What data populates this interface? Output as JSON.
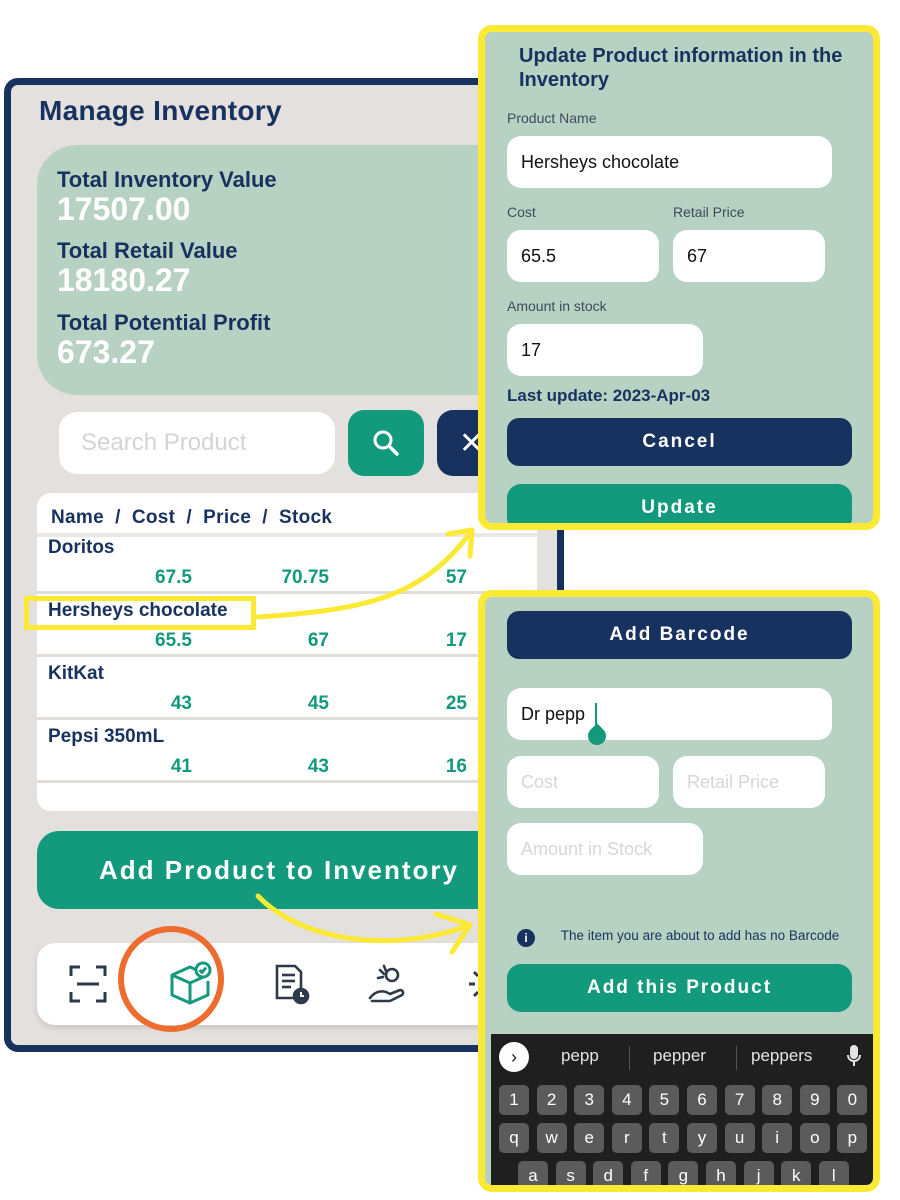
{
  "main": {
    "title": "Manage Inventory",
    "summary": [
      {
        "label": "Total Inventory Value",
        "value": "17507.00"
      },
      {
        "label": "Total Retail Value",
        "value": "18180.27"
      },
      {
        "label": "Total Potential Profit",
        "value": "673.27"
      }
    ],
    "search_placeholder": "Search Product",
    "search_icon": "search-icon",
    "clear_icon": "close-icon",
    "table_header": "Name  /  Cost  /  Price  /  Stock",
    "rows": [
      {
        "name": "Doritos",
        "cost": "67.5",
        "price": "70.75",
        "stock": "57"
      },
      {
        "name": "Hersheys chocolate",
        "cost": "65.5",
        "price": "67",
        "stock": "17"
      },
      {
        "name": "KitKat",
        "cost": "43",
        "price": "45",
        "stock": "25"
      },
      {
        "name": "Pepsi 350mL",
        "cost": "41",
        "price": "43",
        "stock": "16"
      }
    ],
    "add_button": "Add Product to Inventory",
    "nav_icons": [
      "scan-icon",
      "inventory-box-icon",
      "report-icon",
      "sell-icon",
      "settings-icon"
    ]
  },
  "update_panel": {
    "title": "Update Product information in the Inventory",
    "product_name_label": "Product Name",
    "product_name_value": "Hersheys chocolate",
    "cost_label": "Cost",
    "cost_value": "65.5",
    "retail_label": "Retail Price",
    "retail_value": "67",
    "stock_label": "Amount in stock",
    "stock_value": "17",
    "last_update": "Last update: 2023-Apr-03",
    "cancel_label": "Cancel",
    "update_label": "Update"
  },
  "add_panel": {
    "add_barcode_label": "Add Barcode",
    "name_value": "Dr pepp",
    "cost_placeholder": "Cost",
    "retail_placeholder": "Retail Price",
    "stock_placeholder": "Amount in Stock",
    "info_text": "The item you are about to add has no Barcode",
    "add_label": "Add this Product"
  },
  "keyboard": {
    "suggestions": [
      "pepp",
      "pepper",
      "peppers"
    ],
    "row_numbers": [
      "1",
      "2",
      "3",
      "4",
      "5",
      "6",
      "7",
      "8",
      "9",
      "0"
    ],
    "row_qwerty": [
      "q",
      "w",
      "e",
      "r",
      "t",
      "y",
      "u",
      "i",
      "o",
      "p"
    ],
    "row_asdf": [
      "a",
      "s",
      "d",
      "f",
      "g",
      "h",
      "j",
      "k",
      "l"
    ]
  },
  "colors": {
    "navy": "#17325e",
    "green": "#13997c",
    "mint": "#b7d2c2",
    "highlight_yellow": "#fbe934",
    "highlight_orange": "#ee6c2e"
  }
}
